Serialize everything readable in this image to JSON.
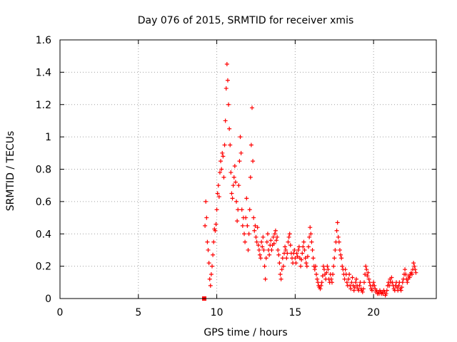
{
  "chart_data": {
    "type": "scatter",
    "title": "Day 076 of 2015, SRMTID for receiver xmis",
    "xlabel": "GPS time / hours",
    "ylabel": "SRMTID / TECUs",
    "xlim": [
      0,
      24
    ],
    "ylim": [
      0,
      1.6
    ],
    "xticks": [
      0,
      5,
      10,
      15,
      20
    ],
    "xtick_labels": [
      "0",
      "5",
      "10",
      "15",
      "20"
    ],
    "yticks": [
      0,
      0.2,
      0.4,
      0.6,
      0.8,
      1.0,
      1.2,
      1.4,
      1.6
    ],
    "ytick_labels": [
      "0",
      "0.2",
      "0.4",
      "0.6",
      "0.8",
      "1",
      "1.2",
      "1.4",
      "1.6"
    ],
    "grid": true,
    "marker": "+",
    "series_color": "#ff0000",
    "series": [
      {
        "name": "SRMTID",
        "outliers": [
          [
            9.2,
            0.0
          ]
        ],
        "points": [
          [
            9.25,
            0.45
          ],
          [
            9.3,
            0.6
          ],
          [
            9.35,
            0.5
          ],
          [
            9.4,
            0.35
          ],
          [
            9.45,
            0.3
          ],
          [
            9.5,
            0.22
          ],
          [
            9.55,
            0.12
          ],
          [
            9.6,
            0.08
          ],
          [
            9.65,
            0.15
          ],
          [
            9.7,
            0.2
          ],
          [
            9.75,
            0.27
          ],
          [
            9.8,
            0.35
          ],
          [
            9.85,
            0.43
          ],
          [
            9.9,
            0.42
          ],
          [
            9.95,
            0.46
          ],
          [
            10.0,
            0.55
          ],
          [
            10.05,
            0.65
          ],
          [
            10.1,
            0.7
          ],
          [
            10.15,
            0.63
          ],
          [
            10.2,
            0.78
          ],
          [
            10.25,
            0.85
          ],
          [
            10.3,
            0.8
          ],
          [
            10.35,
            0.9
          ],
          [
            10.4,
            0.88
          ],
          [
            10.45,
            0.75
          ],
          [
            10.5,
            0.95
          ],
          [
            10.55,
            1.1
          ],
          [
            10.6,
            1.3
          ],
          [
            10.65,
            1.45
          ],
          [
            10.7,
            1.35
          ],
          [
            10.75,
            1.2
          ],
          [
            10.8,
            1.05
          ],
          [
            10.85,
            0.95
          ],
          [
            10.9,
            0.78
          ],
          [
            10.95,
            0.65
          ],
          [
            11.0,
            0.62
          ],
          [
            11.05,
            0.7
          ],
          [
            11.1,
            0.75
          ],
          [
            11.15,
            0.82
          ],
          [
            11.2,
            0.72
          ],
          [
            11.25,
            0.6
          ],
          [
            11.3,
            0.48
          ],
          [
            11.35,
            0.55
          ],
          [
            11.4,
            0.7
          ],
          [
            11.45,
            0.85
          ],
          [
            11.5,
            1.0
          ],
          [
            11.55,
            0.9
          ],
          [
            11.6,
            0.55
          ],
          [
            11.65,
            0.45
          ],
          [
            11.7,
            0.5
          ],
          [
            11.75,
            0.4
          ],
          [
            11.8,
            0.35
          ],
          [
            11.85,
            0.5
          ],
          [
            11.9,
            0.62
          ],
          [
            11.95,
            0.45
          ],
          [
            12.0,
            0.3
          ],
          [
            12.05,
            0.4
          ],
          [
            12.1,
            0.55
          ],
          [
            12.15,
            0.75
          ],
          [
            12.2,
            0.95
          ],
          [
            12.25,
            1.18
          ],
          [
            12.3,
            0.85
          ],
          [
            12.35,
            0.5
          ],
          [
            12.4,
            0.42
          ],
          [
            12.45,
            0.45
          ],
          [
            12.5,
            0.38
          ],
          [
            12.55,
            0.35
          ],
          [
            12.6,
            0.44
          ],
          [
            12.65,
            0.33
          ],
          [
            12.7,
            0.3
          ],
          [
            12.75,
            0.27
          ],
          [
            12.8,
            0.25
          ],
          [
            12.85,
            0.35
          ],
          [
            12.9,
            0.32
          ],
          [
            12.95,
            0.38
          ],
          [
            13.0,
            0.3
          ],
          [
            13.05,
            0.2
          ],
          [
            13.1,
            0.12
          ],
          [
            13.15,
            0.25
          ],
          [
            13.2,
            0.35
          ],
          [
            13.25,
            0.4
          ],
          [
            13.3,
            0.3
          ],
          [
            13.35,
            0.27
          ],
          [
            13.4,
            0.33
          ],
          [
            13.45,
            0.36
          ],
          [
            13.5,
            0.3
          ],
          [
            13.55,
            0.33
          ],
          [
            13.6,
            0.38
          ],
          [
            13.65,
            0.34
          ],
          [
            13.7,
            0.4
          ],
          [
            13.75,
            0.42
          ],
          [
            13.8,
            0.36
          ],
          [
            13.85,
            0.38
          ],
          [
            13.9,
            0.3
          ],
          [
            13.95,
            0.27
          ],
          [
            14.0,
            0.22
          ],
          [
            14.05,
            0.15
          ],
          [
            14.1,
            0.12
          ],
          [
            14.15,
            0.18
          ],
          [
            14.2,
            0.25
          ],
          [
            14.25,
            0.2
          ],
          [
            14.3,
            0.28
          ],
          [
            14.35,
            0.32
          ],
          [
            14.4,
            0.3
          ],
          [
            14.45,
            0.25
          ],
          [
            14.5,
            0.28
          ],
          [
            14.55,
            0.35
          ],
          [
            14.6,
            0.38
          ],
          [
            14.65,
            0.4
          ],
          [
            14.7,
            0.33
          ],
          [
            14.75,
            0.28
          ],
          [
            14.8,
            0.25
          ],
          [
            14.85,
            0.22
          ],
          [
            14.9,
            0.28
          ],
          [
            14.95,
            0.3
          ],
          [
            15.0,
            0.25
          ],
          [
            15.05,
            0.22
          ],
          [
            15.1,
            0.28
          ],
          [
            15.15,
            0.26
          ],
          [
            15.2,
            0.3
          ],
          [
            15.25,
            0.32
          ],
          [
            15.3,
            0.25
          ],
          [
            15.35,
            0.2
          ],
          [
            15.4,
            0.24
          ],
          [
            15.45,
            0.28
          ],
          [
            15.5,
            0.32
          ],
          [
            15.55,
            0.35
          ],
          [
            15.6,
            0.3
          ],
          [
            15.65,
            0.25
          ],
          [
            15.7,
            0.22
          ],
          [
            15.75,
            0.2
          ],
          [
            15.8,
            0.26
          ],
          [
            15.85,
            0.32
          ],
          [
            15.9,
            0.38
          ],
          [
            15.95,
            0.44
          ],
          [
            16.0,
            0.4
          ],
          [
            16.05,
            0.35
          ],
          [
            16.1,
            0.3
          ],
          [
            16.15,
            0.25
          ],
          [
            16.2,
            0.2
          ],
          [
            16.25,
            0.18
          ],
          [
            16.3,
            0.2
          ],
          [
            16.35,
            0.15
          ],
          [
            16.4,
            0.12
          ],
          [
            16.45,
            0.1
          ],
          [
            16.5,
            0.08
          ],
          [
            16.55,
            0.07
          ],
          [
            16.6,
            0.06
          ],
          [
            16.65,
            0.08
          ],
          [
            16.7,
            0.1
          ],
          [
            16.75,
            0.14
          ],
          [
            16.8,
            0.2
          ],
          [
            16.85,
            0.18
          ],
          [
            16.9,
            0.15
          ],
          [
            16.95,
            0.12
          ],
          [
            17.0,
            0.16
          ],
          [
            17.05,
            0.2
          ],
          [
            17.1,
            0.18
          ],
          [
            17.15,
            0.12
          ],
          [
            17.2,
            0.1
          ],
          [
            17.25,
            0.15
          ],
          [
            17.3,
            0.12
          ],
          [
            17.35,
            0.1
          ],
          [
            17.4,
            0.15
          ],
          [
            17.45,
            0.2
          ],
          [
            17.5,
            0.25
          ],
          [
            17.55,
            0.3
          ],
          [
            17.6,
            0.35
          ],
          [
            17.65,
            0.42
          ],
          [
            17.7,
            0.47
          ],
          [
            17.75,
            0.38
          ],
          [
            17.8,
            0.35
          ],
          [
            17.85,
            0.3
          ],
          [
            17.9,
            0.27
          ],
          [
            17.95,
            0.25
          ],
          [
            18.0,
            0.2
          ],
          [
            18.05,
            0.18
          ],
          [
            18.1,
            0.15
          ],
          [
            18.15,
            0.12
          ],
          [
            18.2,
            0.18
          ],
          [
            18.25,
            0.15
          ],
          [
            18.3,
            0.1
          ],
          [
            18.35,
            0.08
          ],
          [
            18.4,
            0.12
          ],
          [
            18.45,
            0.15
          ],
          [
            18.5,
            0.08
          ],
          [
            18.55,
            0.06
          ],
          [
            18.6,
            0.1
          ],
          [
            18.65,
            0.13
          ],
          [
            18.7,
            0.08
          ],
          [
            18.75,
            0.05
          ],
          [
            18.8,
            0.07
          ],
          [
            18.85,
            0.1
          ],
          [
            18.9,
            0.12
          ],
          [
            18.95,
            0.08
          ],
          [
            19.0,
            0.06
          ],
          [
            19.05,
            0.05
          ],
          [
            19.1,
            0.08
          ],
          [
            19.15,
            0.1
          ],
          [
            19.2,
            0.06
          ],
          [
            19.25,
            0.05
          ],
          [
            19.3,
            0.04
          ],
          [
            19.35,
            0.06
          ],
          [
            19.4,
            0.1
          ],
          [
            19.45,
            0.15
          ],
          [
            19.5,
            0.2
          ],
          [
            19.55,
            0.18
          ],
          [
            19.6,
            0.14
          ],
          [
            19.65,
            0.16
          ],
          [
            19.7,
            0.12
          ],
          [
            19.75,
            0.1
          ],
          [
            19.8,
            0.08
          ],
          [
            19.85,
            0.06
          ],
          [
            19.9,
            0.05
          ],
          [
            19.95,
            0.08
          ],
          [
            20.0,
            0.1
          ],
          [
            20.05,
            0.08
          ],
          [
            20.1,
            0.06
          ],
          [
            20.15,
            0.04
          ],
          [
            20.2,
            0.05
          ],
          [
            20.25,
            0.03
          ],
          [
            20.3,
            0.04
          ],
          [
            20.35,
            0.03
          ],
          [
            20.4,
            0.05
          ],
          [
            20.45,
            0.04
          ],
          [
            20.5,
            0.03
          ],
          [
            20.55,
            0.04
          ],
          [
            20.6,
            0.03
          ],
          [
            20.65,
            0.05
          ],
          [
            20.7,
            0.04
          ],
          [
            20.75,
            0.02
          ],
          [
            20.8,
            0.03
          ],
          [
            20.85,
            0.05
          ],
          [
            20.9,
            0.08
          ],
          [
            20.95,
            0.1
          ],
          [
            21.0,
            0.08
          ],
          [
            21.05,
            0.12
          ],
          [
            21.1,
            0.1
          ],
          [
            21.15,
            0.13
          ],
          [
            21.2,
            0.1
          ],
          [
            21.25,
            0.08
          ],
          [
            21.3,
            0.06
          ],
          [
            21.35,
            0.05
          ],
          [
            21.4,
            0.08
          ],
          [
            21.45,
            0.1
          ],
          [
            21.5,
            0.07
          ],
          [
            21.55,
            0.05
          ],
          [
            21.6,
            0.08
          ],
          [
            21.65,
            0.1
          ],
          [
            21.7,
            0.06
          ],
          [
            21.75,
            0.05
          ],
          [
            21.8,
            0.07
          ],
          [
            21.85,
            0.1
          ],
          [
            21.9,
            0.12
          ],
          [
            21.95,
            0.15
          ],
          [
            22.0,
            0.18
          ],
          [
            22.05,
            0.15
          ],
          [
            22.1,
            0.12
          ],
          [
            22.15,
            0.1
          ],
          [
            22.2,
            0.12
          ],
          [
            22.25,
            0.14
          ],
          [
            22.3,
            0.13
          ],
          [
            22.35,
            0.15
          ],
          [
            22.4,
            0.16
          ],
          [
            22.45,
            0.15
          ],
          [
            22.5,
            0.18
          ],
          [
            22.55,
            0.22
          ],
          [
            22.6,
            0.2
          ],
          [
            22.65,
            0.18
          ],
          [
            22.7,
            0.16
          ]
        ]
      }
    ]
  }
}
